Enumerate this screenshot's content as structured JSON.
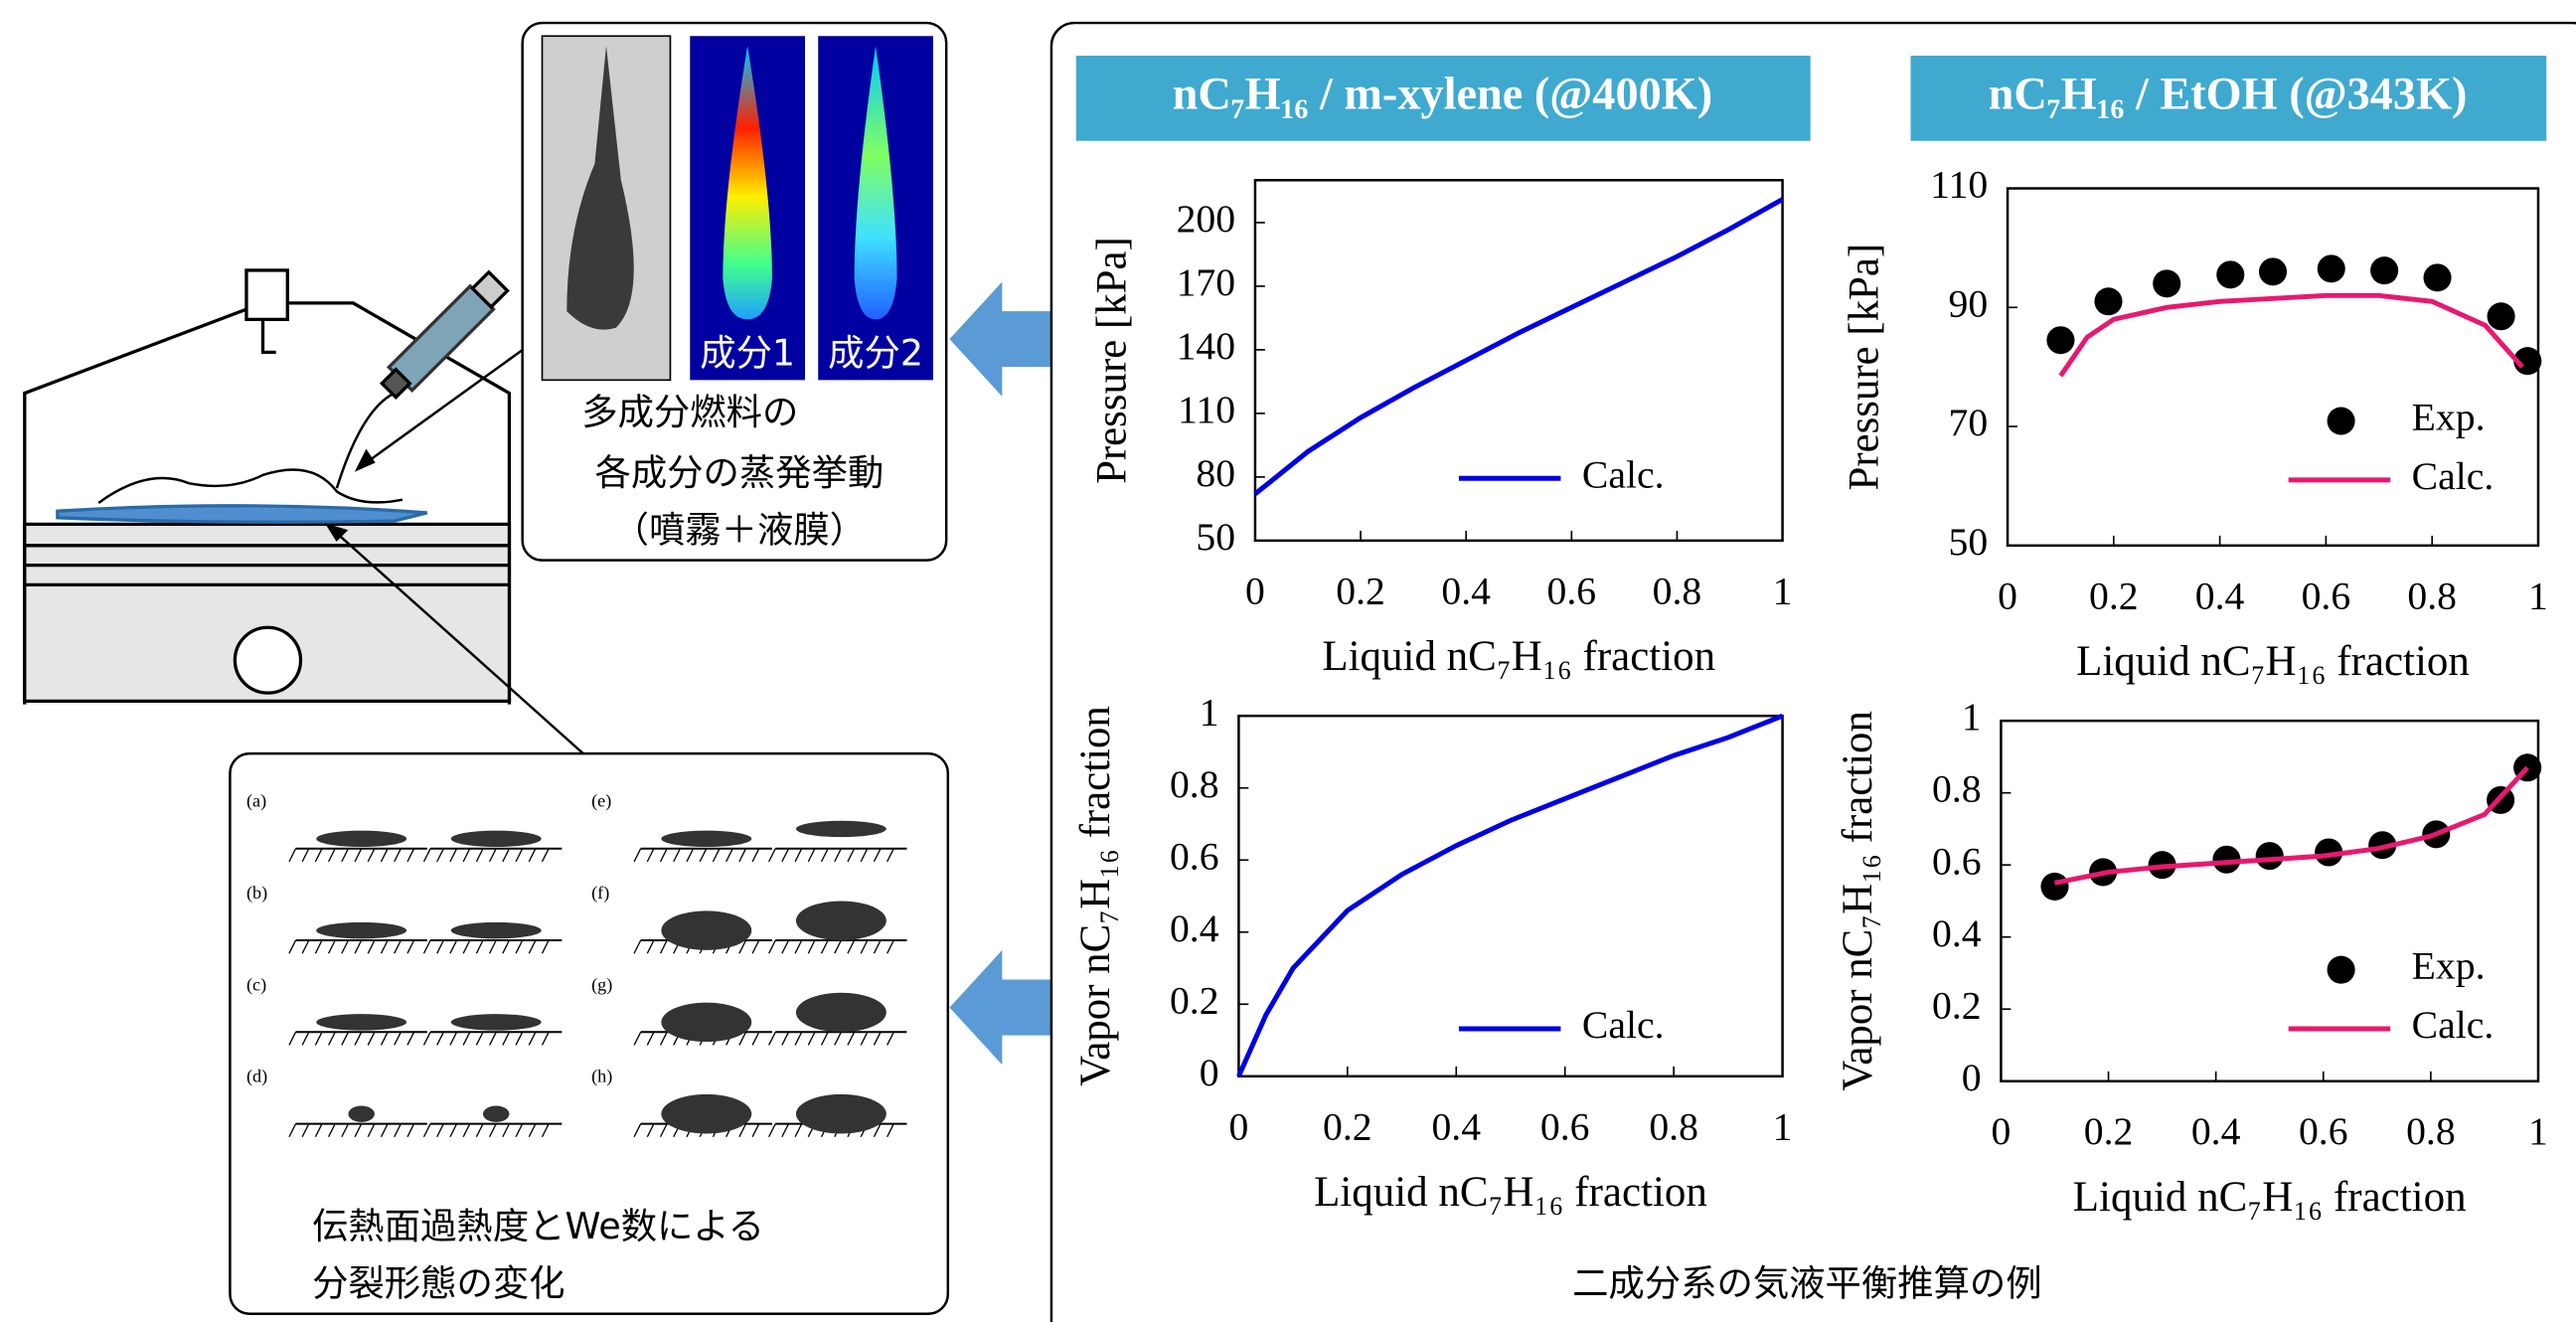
{
  "chart_data": [
    {
      "type": "line",
      "title": "nC₇H₁₆ / m-xylene (@400K)",
      "xlabel": "Liquid nC₇H₁₆ fraction",
      "ylabel": "Pressure [kPa]",
      "xlim": [
        0,
        1
      ],
      "xticks": [
        0,
        0.2,
        0.4,
        0.6,
        0.8,
        1
      ],
      "ylim": [
        50,
        220
      ],
      "yticks": [
        50,
        80,
        110,
        140,
        170,
        200
      ],
      "legend": "lower right",
      "series": [
        {
          "name": "Calc.",
          "type": "line",
          "color": "#0000e6",
          "x": [
            0,
            0.1,
            0.2,
            0.3,
            0.4,
            0.5,
            0.6,
            0.7,
            0.8,
            0.9,
            1
          ],
          "values": [
            72,
            92,
            108,
            122,
            135,
            148,
            160,
            172,
            184,
            197,
            211
          ]
        }
      ]
    },
    {
      "type": "line",
      "title": "nC₇H₁₆ / EtOH (@343K)",
      "xlabel": "Liquid nC₇H₁₆ fraction",
      "ylabel": "Pressure [kPa]",
      "xlim": [
        0,
        1
      ],
      "xticks": [
        0,
        0.2,
        0.4,
        0.6,
        0.8,
        1
      ],
      "ylim": [
        50,
        110
      ],
      "yticks": [
        50,
        70,
        90,
        110
      ],
      "legend": "lower right",
      "series": [
        {
          "name": "Exp.",
          "type": "scatter",
          "color": "#000000",
          "x": [
            0.1,
            0.19,
            0.3,
            0.42,
            0.5,
            0.61,
            0.71,
            0.81,
            0.93,
            0.98
          ],
          "values": [
            84.5,
            91,
            94,
            95.5,
            96,
            96.5,
            96.2,
            95,
            88.5,
            81
          ]
        },
        {
          "name": "Calc.",
          "type": "line",
          "color": "#e8186f",
          "x": [
            0.1,
            0.15,
            0.2,
            0.3,
            0.4,
            0.5,
            0.6,
            0.7,
            0.8,
            0.9,
            0.97
          ],
          "values": [
            78.5,
            85,
            88,
            90,
            91,
            91.5,
            92,
            92,
            91,
            87,
            80
          ]
        }
      ]
    },
    {
      "type": "line",
      "xlabel": "Liquid nC₇H₁₆ fraction",
      "ylabel": "Vapor nC₇H₁₆ fraction",
      "xlim": [
        0,
        1
      ],
      "xticks": [
        0,
        0.2,
        0.4,
        0.6,
        0.8,
        1
      ],
      "ylim": [
        0,
        1
      ],
      "yticks": [
        0,
        0.2,
        0.4,
        0.6,
        0.8,
        1
      ],
      "legend": "lower right",
      "series": [
        {
          "name": "Calc.",
          "type": "line",
          "color": "#0000e6",
          "x": [
            0,
            0.05,
            0.1,
            0.2,
            0.3,
            0.4,
            0.5,
            0.6,
            0.7,
            0.8,
            0.9,
            1
          ],
          "values": [
            0,
            0.17,
            0.3,
            0.46,
            0.56,
            0.64,
            0.71,
            0.77,
            0.83,
            0.89,
            0.94,
            1
          ]
        }
      ]
    },
    {
      "type": "line",
      "xlabel": "Liquid nC₇H₁₆ fraction",
      "ylabel": "Vapor nC₇H₁₆ fraction",
      "xlim": [
        0,
        1
      ],
      "xticks": [
        0,
        0.2,
        0.4,
        0.6,
        0.8,
        1
      ],
      "ylim": [
        0,
        1
      ],
      "yticks": [
        0,
        0.2,
        0.4,
        0.6,
        0.8,
        1
      ],
      "legend": "lower right",
      "series": [
        {
          "name": "Exp.",
          "type": "scatter",
          "color": "#000000",
          "x": [
            0.1,
            0.19,
            0.3,
            0.42,
            0.5,
            0.61,
            0.71,
            0.81,
            0.93,
            0.98
          ],
          "values": [
            0.54,
            0.58,
            0.6,
            0.615,
            0.625,
            0.635,
            0.655,
            0.685,
            0.78,
            0.87
          ]
        },
        {
          "name": "Calc.",
          "type": "line",
          "color": "#e8186f",
          "x": [
            0.1,
            0.2,
            0.3,
            0.4,
            0.5,
            0.6,
            0.7,
            0.8,
            0.9,
            0.98
          ],
          "values": [
            0.55,
            0.58,
            0.595,
            0.605,
            0.615,
            0.625,
            0.645,
            0.68,
            0.74,
            0.87
          ]
        }
      ]
    }
  ],
  "labels": {
    "component1": "成分1",
    "component2": "成分2",
    "spray_caption": [
      "多成分燃料の",
      "各成分の蒸発挙動",
      "（噴霧＋液膜）"
    ],
    "breakup_caption": [
      "伝熱面過熱度とWe数による",
      "分裂形態の変化"
    ],
    "breakup_panels": [
      "(a)",
      "(b)",
      "(c)",
      "(d)",
      "(e)",
      "(f)",
      "(g)",
      "(h)"
    ],
    "vle_caption": "二成分系の気液平衡推算の例"
  }
}
